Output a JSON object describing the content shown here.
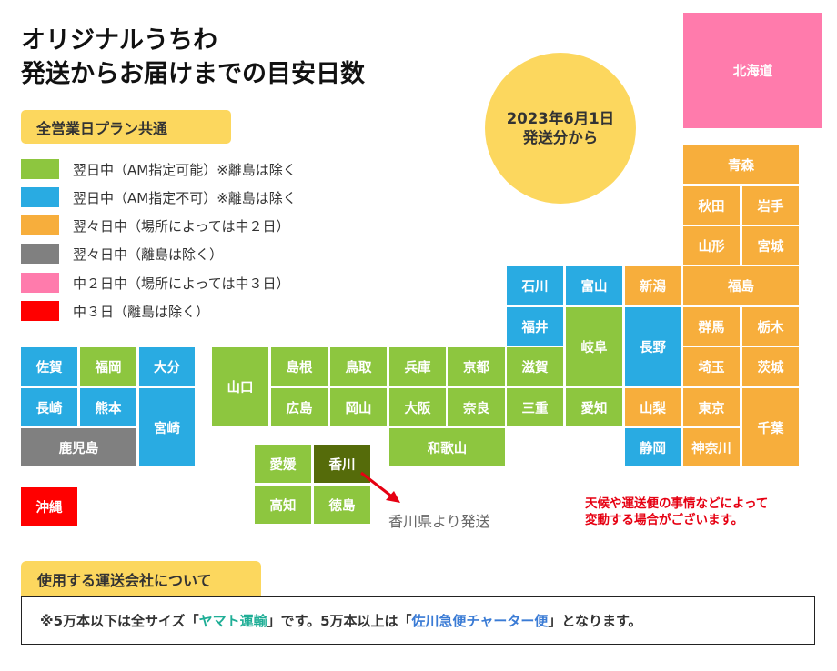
{
  "title": {
    "line1": "オリジナルうちわ",
    "line2": "発送からお届けまでの目安日数"
  },
  "plan_badge": "全営業日プラン共通",
  "legend": [
    {
      "color": "#8dc63f",
      "label": "翌日中（AM指定可能）※離島は除く"
    },
    {
      "color": "#29abe2",
      "label": "翌日中（AM指定不可）※離島は除く"
    },
    {
      "color": "#f7ae3c",
      "label": "翌々日中（場所によっては中２日）"
    },
    {
      "color": "#808080",
      "label": "翌々日中（離島は除く）"
    },
    {
      "color": "#ff7bac",
      "label": "中２日中（場所によっては中３日）"
    },
    {
      "color": "#ff0000",
      "label": "中３日（離島は除く）"
    }
  ],
  "date_circle": {
    "line1": "2023年6月1日",
    "line2": "発送分から"
  },
  "prefectures": {
    "hokkaido": "北海道",
    "aomori": "青森",
    "akita": "秋田",
    "iwate": "岩手",
    "yamagata": "山形",
    "miyagi": "宮城",
    "ishikawa": "石川",
    "toyama": "富山",
    "niigata": "新潟",
    "fukushima": "福島",
    "fukui": "福井",
    "gifu": "岐阜",
    "nagano": "長野",
    "gunma": "群馬",
    "tochigi": "栃木",
    "yamaguchi": "山口",
    "shimane": "島根",
    "tottori": "鳥取",
    "hyogo": "兵庫",
    "kyoto": "京都",
    "shiga": "滋賀",
    "saitama": "埼玉",
    "ibaraki": "茨城",
    "hiroshima": "広島",
    "okayama": "岡山",
    "osaka": "大阪",
    "nara": "奈良",
    "mie": "三重",
    "aichi": "愛知",
    "yamanashi": "山梨",
    "tokyo": "東京",
    "chiba": "千葉",
    "wakayama": "和歌山",
    "shizuoka": "静岡",
    "kanagawa": "神奈川",
    "saga": "佐賀",
    "fukuoka": "福岡",
    "oita": "大分",
    "nagasaki": "長崎",
    "kumamoto": "熊本",
    "miyazaki": "宮崎",
    "kagoshima": "鹿児島",
    "okinawa": "沖縄",
    "ehime": "愛媛",
    "kagawa": "香川",
    "kochi": "高知",
    "tokushima": "徳島"
  },
  "origin_note": "香川県より発送",
  "disclaimer": {
    "line1": "天候や運送便の事情などによって",
    "line2": "変動する場合がございます。"
  },
  "carrier_section": {
    "tab_label": "使用する運送会社について",
    "text_part1": "※5万本以下は全サイズ「",
    "yamato": "ヤマト運輸",
    "text_part2": "」です。5万本以上は「",
    "sagawa": "佐川急便チャーター便",
    "text_part3": "」となります。"
  },
  "colors": {
    "green": "#8dc63f",
    "blue": "#29abe2",
    "orange": "#f7ae3c",
    "gray": "#808080",
    "pink": "#ff7bac",
    "red": "#ff0000",
    "origin": "#556b0a",
    "accent_yellow": "#fcd75e"
  }
}
